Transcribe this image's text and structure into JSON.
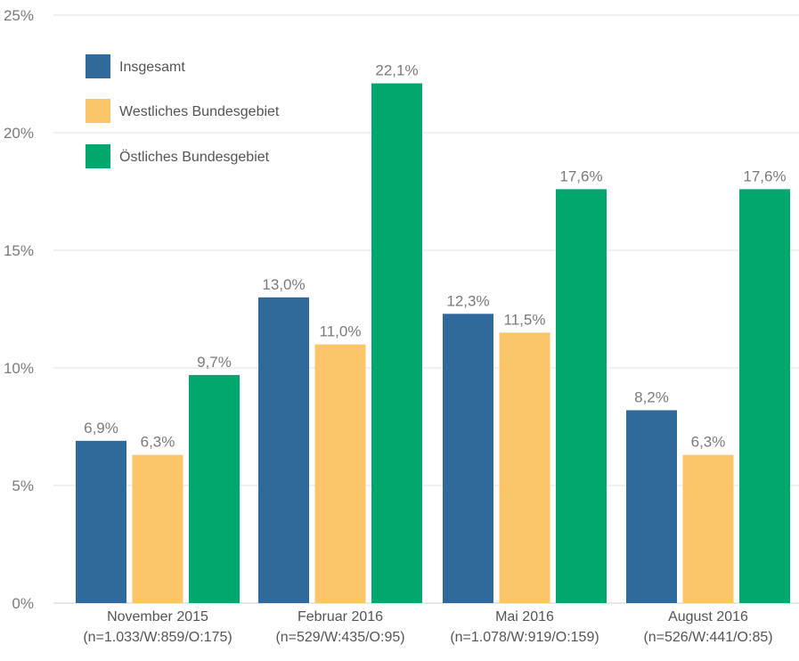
{
  "chart_data": {
    "type": "bar",
    "categories": [
      "November 2015",
      "Februar 2016",
      "Mai 2016",
      "August 2016"
    ],
    "category_notes": [
      "(n=1.033/W:859/O:175)",
      "(n=529/W:435/O:95)",
      "(n=1.078/W:919/O:159)",
      "(n=526/W:441/O:85)"
    ],
    "series": [
      {
        "name": "Insgesamt",
        "color": "#306a9c",
        "values": [
          6.9,
          13.0,
          12.3,
          8.2
        ],
        "labels": [
          "6,9%",
          "13,0%",
          "12,3%",
          "8,2%"
        ]
      },
      {
        "name": "Westliches Bundesgebiet",
        "color": "#fcc56a",
        "values": [
          6.3,
          11.0,
          11.5,
          6.3
        ],
        "labels": [
          "6,3%",
          "11,0%",
          "11,5%",
          "6,3%"
        ]
      },
      {
        "name": "Östliches Bundesgebiet",
        "color": "#00a86e",
        "values": [
          9.7,
          22.1,
          17.6,
          17.6
        ],
        "labels": [
          "9,7%",
          "22,1%",
          "17,6%",
          "17,6%"
        ]
      }
    ],
    "ylim": [
      0,
      25
    ],
    "yticks": [
      0,
      5,
      10,
      15,
      20,
      25
    ],
    "ytick_labels": [
      "0%",
      "5%",
      "10%",
      "15%",
      "20%",
      "25%"
    ],
    "grid": true,
    "legend_position": "top-left"
  }
}
